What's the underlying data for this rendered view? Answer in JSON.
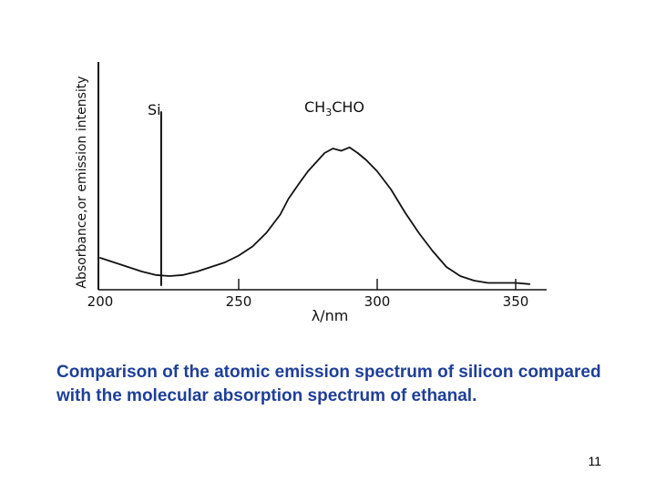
{
  "chart_data": {
    "type": "line",
    "xlabel": "λ/nm",
    "ylabel": "Absorbance,or emission intensity",
    "xlim": [
      200,
      350
    ],
    "x_ticks": [
      200,
      250,
      300,
      350
    ],
    "grid": false,
    "y_axis_scale_labels": false,
    "series": [
      {
        "name": "Si",
        "kind": "emission-line",
        "x": [
          222,
          222,
          222
        ],
        "y": [
          0.02,
          0.78,
          0.02
        ]
      },
      {
        "name": "CH3CHO",
        "kind": "absorption-curve",
        "x": [
          200,
          205,
          210,
          215,
          220,
          225,
          230,
          235,
          240,
          245,
          250,
          255,
          260,
          265,
          268,
          272,
          275,
          278,
          281,
          284,
          287,
          290,
          293,
          296,
          300,
          305,
          310,
          315,
          320,
          325,
          330,
          335,
          340,
          345,
          350,
          355
        ],
        "y": [
          0.14,
          0.12,
          0.1,
          0.08,
          0.065,
          0.06,
          0.065,
          0.08,
          0.1,
          0.12,
          0.15,
          0.19,
          0.25,
          0.33,
          0.4,
          0.47,
          0.52,
          0.56,
          0.6,
          0.62,
          0.61,
          0.625,
          0.6,
          0.57,
          0.52,
          0.44,
          0.34,
          0.25,
          0.17,
          0.1,
          0.06,
          0.04,
          0.03,
          0.03,
          0.03,
          0.025
        ]
      }
    ],
    "annotations": [
      {
        "text": "Si",
        "near_x": 222
      },
      {
        "text": "CH",
        "subscript": "3",
        "suffix": "CHO",
        "near_x": 287
      }
    ]
  },
  "caption": "Comparison of the atomic emission spectrum of silicon compared with the molecular absorption spectrum of ethanal.",
  "page_number": "11",
  "colors": {
    "caption_text": "#1f3f98",
    "ink": "#111111"
  }
}
